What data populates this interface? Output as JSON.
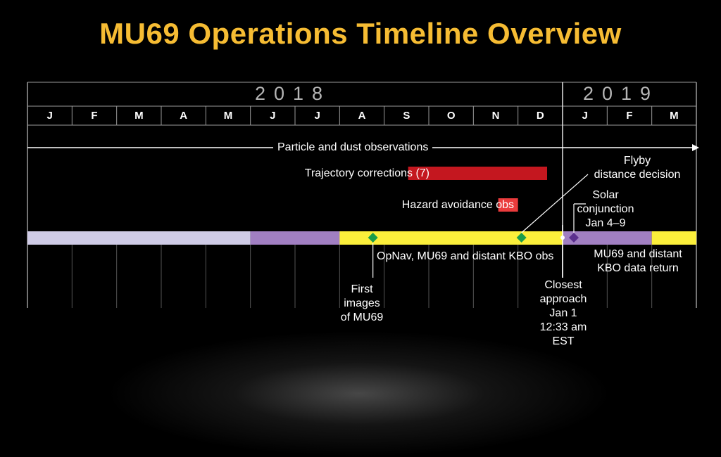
{
  "title": "MU69 Operations Timeline Overview",
  "years": [
    "2018",
    "2019"
  ],
  "months": [
    "J",
    "F",
    "M",
    "A",
    "M",
    "J",
    "J",
    "A",
    "S",
    "O",
    "N",
    "D",
    "J",
    "F",
    "M"
  ],
  "labels": {
    "particle": "Particle and dust observations",
    "trajectory": "Trajectory corrections (7)",
    "hazard": "Hazard avoidance obs",
    "flyby1": "Flyby",
    "flyby2": "distance decision",
    "solar1": "Solar",
    "solar2": "conjunction",
    "solar3": "Jan 4–9",
    "opnav": "OpNav, MU69 and distant KBO obs",
    "datareturn1": "MU69 and distant",
    "datareturn2": "KBO data return",
    "first1": "First",
    "first2": "images",
    "first3": "of MU69",
    "closest1": "Closest",
    "closest2": "approach",
    "closest3": "Jan 1",
    "closest4": "12:33 am",
    "closest5": "EST"
  },
  "colors": {
    "title": "#f6bc33",
    "lavender": "#cfcbe6",
    "purple": "#a17fc2",
    "yellow": "#fbef3b",
    "trajectory": "#c4171f",
    "hazard": "#ea3b3c",
    "green": "#1a9d4a",
    "purple_marker": "#5b2f8e",
    "grid": "#9a9a9a"
  },
  "chart_data": {
    "type": "timeline",
    "axis": {
      "start": "2018-01",
      "end": "2019-03",
      "years": [
        "2018",
        "2019"
      ]
    },
    "phases": [
      {
        "start": "2018-01",
        "end": "2018-05",
        "color": "#cfcbe6"
      },
      {
        "start": "2018-06",
        "end": "2018-08",
        "color": "#a17fc2"
      },
      {
        "start": "2018-08",
        "end": "2019-01",
        "color": "#fbef3b",
        "name": "OpNav, MU69 and distant KBO obs"
      },
      {
        "start": "2019-01",
        "end": "2019-02",
        "color": "#a17fc2",
        "name": "MU69 and distant KBO data return"
      },
      {
        "start": "2019-03",
        "end": "2019-03",
        "color": "#fbef3b"
      }
    ],
    "activities": [
      {
        "name": "Particle and dust observations",
        "start": "2018-01",
        "end": "2019-03",
        "ongoing": true
      },
      {
        "name": "Trajectory corrections (7)",
        "start": "2018-09",
        "end": "2018-12"
      },
      {
        "name": "Hazard avoidance obs",
        "start": "2018-12",
        "end": "2018-12"
      }
    ],
    "events": [
      {
        "name": "First images of MU69",
        "date": "2018-08"
      },
      {
        "name": "Flyby distance decision",
        "date": "2018-12"
      },
      {
        "name": "Closest approach Jan 1 12:33 am EST",
        "date": "2019-01-01"
      },
      {
        "name": "Solar conjunction Jan 4–9",
        "date": "2019-01-04"
      }
    ]
  }
}
